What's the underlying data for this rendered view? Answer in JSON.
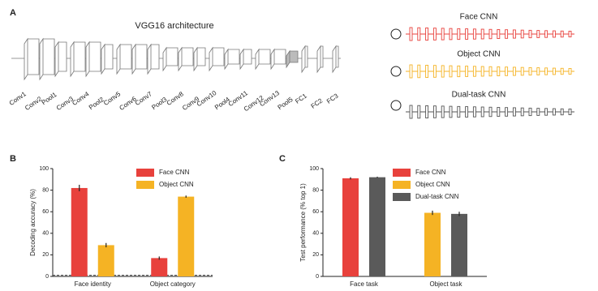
{
  "panel_labels": [
    "A",
    "B",
    "C"
  ],
  "architecture": {
    "title": "VGG16 architecture",
    "layers": [
      "Conv1",
      "Conv2",
      "Pool1",
      "Conv3",
      "Conv4",
      "Pool2",
      "Conv5",
      "Conv6",
      "Conv7",
      "Pool3",
      "Conv8",
      "Conv9",
      "Conv10",
      "Pool4",
      "Conv11",
      "Conv12",
      "Conv13",
      "Pool5",
      "FC1",
      "FC2",
      "FC3"
    ],
    "networks": [
      {
        "name": "Face CNN",
        "color": "#e8413c"
      },
      {
        "name": "Object CNN",
        "color": "#f5b324"
      },
      {
        "name": "Dual-task CNN",
        "color": "#555555"
      }
    ]
  },
  "chart_data": [
    {
      "type": "bar",
      "y_label": "Decoding accuracy (%)",
      "categories": [
        "Face identity",
        "Object category"
      ],
      "series": [
        {
          "name": "Face CNN",
          "color": "#e8413c",
          "values": [
            82,
            17
          ],
          "errors": [
            3,
            1.5
          ]
        },
        {
          "name": "Object CNN",
          "color": "#f5b324",
          "values": [
            29,
            74
          ],
          "errors": [
            2,
            1
          ]
        }
      ],
      "ylim": [
        0,
        100
      ],
      "yticks": [
        0,
        20,
        40,
        60,
        80,
        100
      ],
      "chance_level": 1
    },
    {
      "type": "bar",
      "y_label": "Test performance (% top 1)",
      "categories": [
        "Face task",
        "Object task"
      ],
      "series": [
        {
          "name": "Face CNN",
          "color": "#e8413c",
          "values": [
            91,
            null
          ],
          "errors": [
            1,
            null
          ]
        },
        {
          "name": "Object CNN",
          "color": "#f5b324",
          "values": [
            null,
            59
          ],
          "errors": [
            null,
            2
          ]
        },
        {
          "name": "Dual-task CNN",
          "color": "#5a5a5a",
          "values": [
            92,
            58
          ],
          "errors": [
            0.5,
            2
          ]
        }
      ],
      "ylim": [
        0,
        100
      ],
      "yticks": [
        0,
        20,
        40,
        60,
        80,
        100
      ]
    }
  ]
}
